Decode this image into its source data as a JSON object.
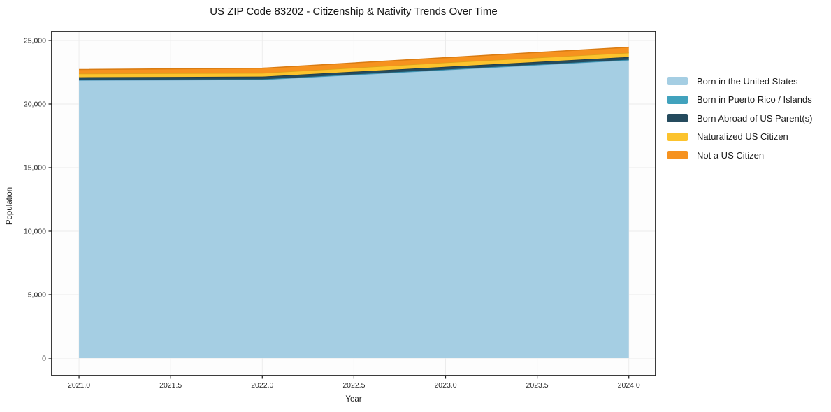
{
  "title": "US ZIP Code 83202 - Citizenship & Nativity Trends Over Time",
  "axes": {
    "x_label": "Year",
    "y_label": "Population",
    "x_tick_labels": [
      "2021.0",
      "2021.5",
      "2022.0",
      "2022.5",
      "2023.0",
      "2023.5",
      "2024.0"
    ],
    "y_tick_labels": [
      "0",
      "5,000",
      "10,000",
      "15,000",
      "20,000",
      "25,000"
    ]
  },
  "chart_data": {
    "type": "area",
    "stacked": true,
    "title": "US ZIP Code 83202 - Citizenship & Nativity Trends Over Time",
    "xlabel": "Year",
    "ylabel": "Population",
    "x": [
      2021,
      2022,
      2023,
      2024
    ],
    "series": [
      {
        "name": "Born in the United States",
        "color": "#a5cee3",
        "edge_color": "#5b9dc0",
        "values": [
          21870,
          21920,
          22690,
          23460
        ]
      },
      {
        "name": "Born in Puerto Rico / Islands",
        "color": "#41a2bd",
        "edge_color": "#2f8aa6",
        "values": [
          30,
          30,
          30,
          30
        ]
      },
      {
        "name": "Born Abroad of US Parent(s)",
        "color": "#254b5e",
        "edge_color": "#1c3a49",
        "values": [
          210,
          210,
          210,
          210
        ]
      },
      {
        "name": "Naturalized US Citizen",
        "color": "#fcc32d",
        "edge_color": "#dba219",
        "values": [
          280,
          280,
          330,
          330
        ]
      },
      {
        "name": "Not a US Citizen",
        "color": "#f6921f",
        "edge_color": "#d97b12",
        "values": [
          330,
          380,
          390,
          440
        ]
      }
    ],
    "x_ticks": [
      2021,
      2021.5,
      2022,
      2022.5,
      2023,
      2023.5,
      2024
    ],
    "y_ticks": [
      0,
      5000,
      10000,
      15000,
      20000,
      25000
    ],
    "xlim": [
      2020.851,
      2024.146
    ],
    "ylim": [
      -1374,
      25714
    ],
    "grid": true,
    "legend_position": "right",
    "frame_color": "#1a1a1a",
    "grid_color": "#ececec",
    "tick_label_color": "#2b2b2b",
    "plot_bg": "#fdfdfd"
  }
}
